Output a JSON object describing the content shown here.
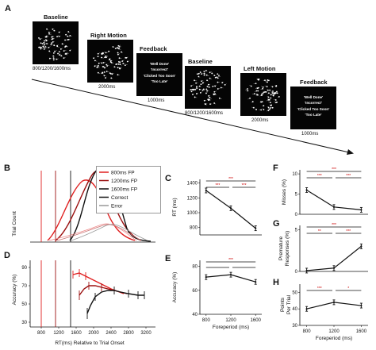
{
  "panel_a": {
    "label": "A",
    "stages": [
      {
        "title": "Baseline",
        "duration": "800/1200/1600ms",
        "kind": "dots"
      },
      {
        "title": "Right Motion",
        "duration": "2000ms",
        "kind": "dots"
      },
      {
        "title": "Feedback",
        "duration": "1000ms",
        "kind": "text"
      },
      {
        "title": "Baseline",
        "duration": "800/1200/1600ms",
        "kind": "dots"
      },
      {
        "title": "Left Motion",
        "duration": "2000ms",
        "kind": "dots"
      },
      {
        "title": "Feedback",
        "duration": "1000ms",
        "kind": "text"
      }
    ],
    "feedback_lines": [
      "'Well Done'",
      "'Incorrect'",
      "'Clicked Too Soon'",
      "'Too Late'"
    ]
  },
  "panel_b": {
    "label": "B",
    "ylabel": "Trial Count",
    "legend": [
      {
        "name": "800ms FP",
        "color": "#e02020"
      },
      {
        "name": "1200ms FP",
        "color": "#9b1010"
      },
      {
        "name": "1600ms FP",
        "color": "#111111"
      },
      {
        "name": "Correct",
        "color": "#111111"
      },
      {
        "name": "Error",
        "color": "#999999"
      }
    ]
  },
  "panel_d": {
    "label": "D",
    "ylabel": "Accuracy (%)",
    "xlabel": "RT(ms) Relative to Trial  Onset",
    "yticks": [
      "90",
      "70",
      "50",
      "30"
    ],
    "xticks": [
      "800",
      "1200",
      "1600",
      "2000",
      "2400",
      "2800",
      "3200"
    ]
  },
  "chart_data": [
    {
      "type": "line",
      "panel": "C",
      "ylabel": "RT (ms)",
      "x": [
        800,
        1200,
        1600
      ],
      "values": [
        1300,
        1060,
        790
      ],
      "ylim": [
        700,
        1450
      ],
      "yticks": [
        "1400",
        "1200",
        "1000",
        "800"
      ],
      "significance": [
        "***",
        "***",
        "***"
      ]
    },
    {
      "type": "line",
      "panel": "E",
      "ylabel": "Accuracy (%)",
      "xlabel": "Foreperiod (ms)",
      "x": [
        800,
        1200,
        1600
      ],
      "xticks": [
        "800",
        "1200",
        "1600"
      ],
      "values": [
        71,
        73,
        67
      ],
      "ylim": [
        40,
        85
      ],
      "yticks": [
        "80",
        "60",
        "40"
      ],
      "significance": [
        "***"
      ]
    },
    {
      "type": "line",
      "panel": "F",
      "ylabel": "Misses (%)",
      "x": [
        800,
        1200,
        1600
      ],
      "values": [
        6,
        1.8,
        1.1
      ],
      "ylim": [
        0,
        11
      ],
      "yticks": [
        "10",
        "5",
        "0"
      ],
      "significance": [
        "***",
        "***",
        "***"
      ]
    },
    {
      "type": "line",
      "panel": "G",
      "ylabel": "Premature Responses (%)",
      "x": [
        800,
        1200,
        1600
      ],
      "values": [
        0.1,
        0.4,
        3
      ],
      "ylim": [
        0,
        5.5
      ],
      "yticks": [
        "5",
        "0"
      ],
      "significance": [
        "**",
        "***",
        "***"
      ]
    },
    {
      "type": "line",
      "panel": "H",
      "ylabel": "Points Per Trial",
      "xlabel": "Foreperiod (ms)",
      "x": [
        800,
        1200,
        1600
      ],
      "xticks": [
        "800",
        "1200",
        "1600"
      ],
      "values": [
        40,
        44,
        42
      ],
      "ylim": [
        30,
        55
      ],
      "yticks": [
        "50",
        "40",
        "30"
      ],
      "significance": [
        "***",
        "*"
      ]
    }
  ]
}
